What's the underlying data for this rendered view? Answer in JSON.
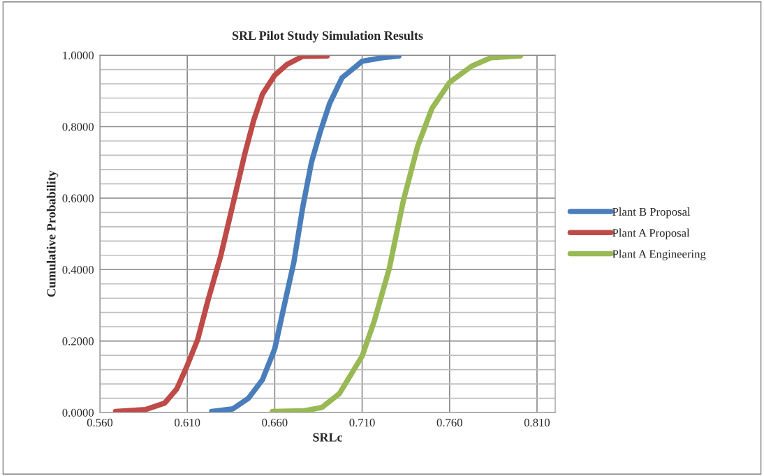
{
  "chart_data": {
    "type": "line",
    "title": "SRL Pilot Study Simulation Results",
    "xlabel": "SRLc",
    "ylabel": "Cumulative Probability",
    "xlim": [
      0.56,
      0.8204
    ],
    "ylim": [
      0,
      1
    ],
    "xticks": [
      {
        "value": 0.56,
        "label": "0.560"
      },
      {
        "value": 0.61,
        "label": "0.610"
      },
      {
        "value": 0.66,
        "label": "0.660"
      },
      {
        "value": 0.71,
        "label": "0.710"
      },
      {
        "value": 0.76,
        "label": "0.760"
      },
      {
        "value": 0.81,
        "label": "0.810"
      }
    ],
    "yticks": [
      {
        "value": 0,
        "label": "0.0000"
      },
      {
        "value": 0.04,
        "label": null
      },
      {
        "value": 0.08,
        "label": null
      },
      {
        "value": 0.12,
        "label": null
      },
      {
        "value": 0.16,
        "label": null
      },
      {
        "value": 0.2,
        "label": "0.2000"
      },
      {
        "value": 0.24,
        "label": null
      },
      {
        "value": 0.28,
        "label": null
      },
      {
        "value": 0.32,
        "label": null
      },
      {
        "value": 0.36,
        "label": null
      },
      {
        "value": 0.4,
        "label": "0.4000"
      },
      {
        "value": 0.44,
        "label": null
      },
      {
        "value": 0.48,
        "label": null
      },
      {
        "value": 0.52,
        "label": null
      },
      {
        "value": 0.56,
        "label": null
      },
      {
        "value": 0.6,
        "label": "0.6000"
      },
      {
        "value": 0.64,
        "label": null
      },
      {
        "value": 0.68,
        "label": null
      },
      {
        "value": 0.72,
        "label": null
      },
      {
        "value": 0.76,
        "label": null
      },
      {
        "value": 0.8,
        "label": "0.8000"
      },
      {
        "value": 0.84,
        "label": null
      },
      {
        "value": 0.88,
        "label": null
      },
      {
        "value": 0.92,
        "label": null
      },
      {
        "value": 0.96,
        "label": null
      },
      {
        "value": 1,
        "label": "1.0000"
      }
    ],
    "grid": true,
    "legend": "right",
    "marker": "none",
    "line_style": "solid",
    "series": [
      {
        "name": "Plant B Proposal",
        "color": "#4a7ebb",
        "x": [
          0.624,
          0.636,
          0.645,
          0.653,
          0.66,
          0.665,
          0.671,
          0.676,
          0.681,
          0.686,
          0.6914,
          0.6985,
          0.71,
          0.7215,
          0.731
        ],
        "values": [
          0.003,
          0.01,
          0.04,
          0.092,
          0.178,
          0.29,
          0.422,
          0.574,
          0.7,
          0.785,
          0.865,
          0.937,
          0.983,
          0.993,
          0.998
        ]
      },
      {
        "name": "Plant A Proposal",
        "color": "#be4b48",
        "x": [
          0.569,
          0.586,
          0.597,
          0.604,
          0.61,
          0.616,
          0.622,
          0.629,
          0.636,
          0.643,
          0.648,
          0.653,
          0.66,
          0.667,
          0.676,
          0.69
        ],
        "values": [
          0.003,
          0.008,
          0.026,
          0.066,
          0.132,
          0.205,
          0.317,
          0.436,
          0.581,
          0.726,
          0.818,
          0.891,
          0.944,
          0.974,
          0.997,
          0.998
        ]
      },
      {
        "name": "Plant A Engineering",
        "color": "#98b954",
        "x": [
          0.6587,
          0.677,
          0.687,
          0.697,
          0.71,
          0.717,
          0.7255,
          0.7336,
          0.7418,
          0.7499,
          0.76,
          0.7728,
          0.7836,
          0.8005
        ],
        "values": [
          0.003,
          0.005,
          0.014,
          0.053,
          0.158,
          0.257,
          0.403,
          0.594,
          0.746,
          0.851,
          0.924,
          0.97,
          0.993,
          0.998
        ]
      }
    ]
  }
}
